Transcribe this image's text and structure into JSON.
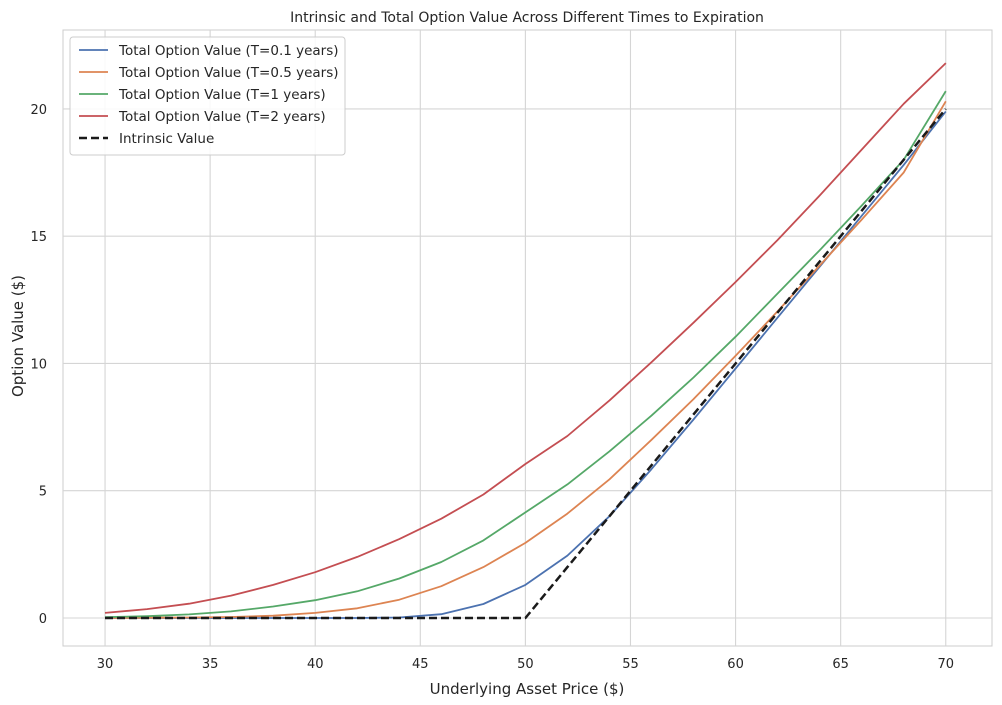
{
  "chart_data": {
    "type": "line",
    "title": "Intrinsic and Total Option Value Across Different Times to Expiration",
    "xlabel": "Underlying Asset Price ($)",
    "ylabel": "Option Value ($)",
    "xlim": [
      28,
      72.2
    ],
    "ylim": [
      -1.1,
      23.1
    ],
    "xticks": [
      "30",
      "35",
      "40",
      "45",
      "50",
      "55",
      "60",
      "65",
      "70"
    ],
    "yticks": [
      "0",
      "5",
      "10",
      "15",
      "20"
    ],
    "grid": true,
    "legend_position": "top-left",
    "x": [
      30,
      32,
      34,
      36,
      38,
      40,
      42,
      44,
      46,
      48,
      50,
      52,
      54,
      56,
      58,
      60,
      62,
      64,
      66,
      68,
      70
    ],
    "series": [
      {
        "name": "Total Option Value (T=0.1 years)",
        "color": "#4c72b0",
        "style": "solid",
        "values": [
          0,
          0,
          0,
          0,
          0,
          0,
          0,
          0.02,
          0.15,
          0.55,
          1.3,
          2.45,
          4.0,
          5.85,
          7.8,
          9.8,
          11.8,
          13.8,
          15.8,
          17.8,
          19.9
        ]
      },
      {
        "name": "Total Option Value (T=0.5 years)",
        "color": "#dd8452",
        "style": "solid",
        "values": [
          0,
          0.01,
          0.02,
          0.04,
          0.09,
          0.2,
          0.38,
          0.72,
          1.25,
          2.0,
          2.95,
          4.1,
          5.45,
          7.0,
          8.6,
          10.3,
          12.05,
          13.85,
          15.65,
          17.5,
          20.3
        ]
      },
      {
        "name": "Total Option Value (T=1 years)",
        "color": "#55a868",
        "style": "solid",
        "values": [
          0.03,
          0.07,
          0.14,
          0.26,
          0.45,
          0.7,
          1.05,
          1.55,
          2.2,
          3.05,
          4.15,
          5.25,
          6.55,
          7.95,
          9.45,
          11.05,
          12.75,
          14.45,
          16.2,
          18.0,
          20.7
        ]
      },
      {
        "name": "Total Option Value (T=2 years)",
        "color": "#c44e52",
        "style": "solid",
        "values": [
          0.2,
          0.35,
          0.56,
          0.88,
          1.3,
          1.8,
          2.4,
          3.1,
          3.9,
          4.85,
          6.05,
          7.15,
          8.55,
          10.05,
          11.6,
          13.2,
          14.85,
          16.6,
          18.4,
          20.2,
          21.8
        ]
      },
      {
        "name": "Intrinsic Value",
        "color": "#1a1a1a",
        "style": "dashed",
        "values": [
          0,
          0,
          0,
          0,
          0,
          0,
          0,
          0,
          0,
          0,
          0,
          2,
          4,
          6,
          8,
          10,
          12,
          14,
          16,
          18,
          20
        ]
      }
    ]
  }
}
